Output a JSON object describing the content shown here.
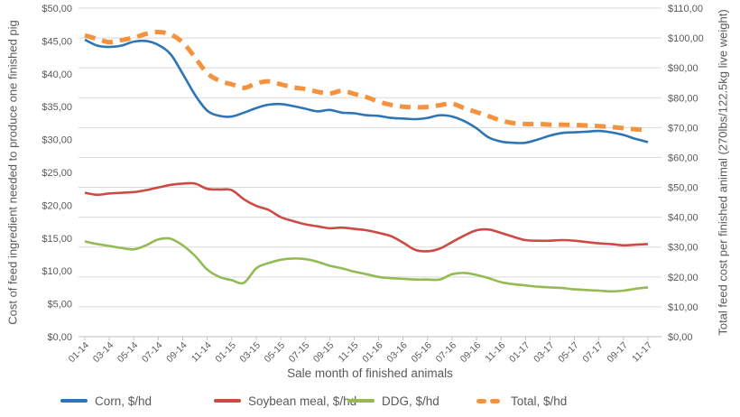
{
  "chart_data": {
    "type": "line",
    "x_axis_title": "Sale month of finished animals",
    "left_axis_title": "Cost of feed ingredient needed to produce one finished pig",
    "right_axis_title": "Total feed cost per finished animal (270lbs/122.5kg live weight)",
    "left_axis": {
      "min": 0,
      "max": 50,
      "step": 5,
      "tick_labels": [
        "$0,00",
        "$5,00",
        "$10,00",
        "$15,00",
        "$20,00",
        "$25,00",
        "$30,00",
        "$35,00",
        "$40,00",
        "$45,00",
        "$50,00"
      ]
    },
    "right_axis": {
      "min": 0,
      "max": 110,
      "step": 10,
      "tick_labels": [
        "$0,00",
        "$10,00",
        "$20,00",
        "$30,00",
        "$40,00",
        "$50,00",
        "$60,00",
        "$70,00",
        "$80,00",
        "$90,00",
        "$100,00",
        "$110,00"
      ]
    },
    "x_categories": [
      "01-14",
      "02-14",
      "03-14",
      "04-14",
      "05-14",
      "06-14",
      "07-14",
      "08-14",
      "09-14",
      "10-14",
      "11-14",
      "12-14",
      "01-15",
      "02-15",
      "03-15",
      "04-15",
      "05-15",
      "06-15",
      "07-15",
      "08-15",
      "09-15",
      "10-15",
      "11-15",
      "12-15",
      "01-16",
      "02-16",
      "03-16",
      "04-16",
      "05-16",
      "06-16",
      "07-16",
      "08-16",
      "09-16",
      "10-16",
      "11-16",
      "12-16",
      "01-17",
      "02-17",
      "03-17",
      "04-17",
      "05-17",
      "06-17",
      "07-17",
      "08-17",
      "09-17",
      "10-17",
      "11-17"
    ],
    "x_label_every": 2,
    "x_tick_labels": [
      "01-14",
      "03-14",
      "05-14",
      "07-14",
      "09-14",
      "11-14",
      "01-15",
      "03-15",
      "05-15",
      "07-15",
      "09-15",
      "11-15",
      "01-16",
      "03-16",
      "05-16",
      "07-16",
      "09-16",
      "11-16",
      "01-17",
      "03-17",
      "05-17",
      "07-17",
      "09-17",
      "11-17"
    ],
    "grid": "horizontal",
    "legend_position": "bottom",
    "colors": {
      "grid": "#D9D9D9",
      "axis_line": "#BFBFBF",
      "text": "#595959"
    },
    "series": [
      {
        "name": "Corn, $/hd",
        "axis": "left",
        "color": "#2E75B6",
        "dashed": false,
        "width": 2.6,
        "values": [
          45.2,
          44.3,
          44.1,
          44.3,
          44.9,
          45.0,
          44.4,
          43.0,
          40.0,
          36.8,
          34.4,
          33.6,
          33.5,
          34.1,
          34.8,
          35.3,
          35.4,
          35.1,
          34.7,
          34.3,
          34.5,
          34.1,
          34.0,
          33.7,
          33.6,
          33.3,
          33.2,
          33.1,
          33.3,
          33.7,
          33.5,
          32.8,
          31.7,
          30.3,
          29.7,
          29.5,
          29.5,
          30.0,
          30.6,
          31.0,
          31.1,
          31.2,
          31.3,
          31.1,
          30.7,
          30.1,
          29.6
        ]
      },
      {
        "name": "Soybean meal, $/hd",
        "axis": "left",
        "color": "#CE4B45",
        "dashed": false,
        "width": 2.6,
        "values": [
          21.9,
          21.6,
          21.8,
          21.9,
          22.0,
          22.3,
          22.7,
          23.1,
          23.3,
          23.3,
          22.5,
          22.4,
          22.3,
          20.9,
          19.9,
          19.3,
          18.2,
          17.6,
          17.1,
          16.8,
          16.5,
          16.6,
          16.4,
          16.2,
          15.8,
          15.3,
          14.3,
          13.2,
          13.0,
          13.4,
          14.4,
          15.4,
          16.2,
          16.3,
          15.8,
          15.2,
          14.7,
          14.6,
          14.6,
          14.7,
          14.6,
          14.4,
          14.2,
          14.1,
          13.9,
          14.0,
          14.1
        ]
      },
      {
        "name": "DDG, $/hd",
        "axis": "left",
        "color": "#94BB53",
        "dashed": false,
        "width": 2.6,
        "values": [
          14.5,
          14.1,
          13.8,
          13.5,
          13.3,
          13.9,
          14.8,
          14.9,
          13.9,
          12.3,
          10.2,
          9.1,
          8.6,
          8.2,
          10.4,
          11.2,
          11.7,
          11.9,
          11.8,
          11.4,
          10.8,
          10.4,
          9.9,
          9.5,
          9.1,
          8.9,
          8.8,
          8.7,
          8.7,
          8.7,
          9.5,
          9.7,
          9.4,
          8.9,
          8.3,
          8.0,
          7.8,
          7.6,
          7.5,
          7.4,
          7.2,
          7.1,
          7.0,
          6.9,
          7.0,
          7.3,
          7.5
        ]
      },
      {
        "name": "Total, $/hd",
        "axis": "right",
        "color": "#F5923D",
        "dashed": true,
        "width": 5,
        "values": [
          100.9,
          99.7,
          98.6,
          99.3,
          100.1,
          101.4,
          102.0,
          101.2,
          98.5,
          93.5,
          88.2,
          85.7,
          84.5,
          83.3,
          84.8,
          85.5,
          84.5,
          83.5,
          82.9,
          82.0,
          81.4,
          82.3,
          81.3,
          80.2,
          78.7,
          77.6,
          77.0,
          76.8,
          76.9,
          77.5,
          78.0,
          76.5,
          75.2,
          73.8,
          72.4,
          71.5,
          71.2,
          71.2,
          71.0,
          71.0,
          70.9,
          70.7,
          70.5,
          70.2,
          69.8,
          69.4,
          69.2
        ]
      }
    ]
  }
}
